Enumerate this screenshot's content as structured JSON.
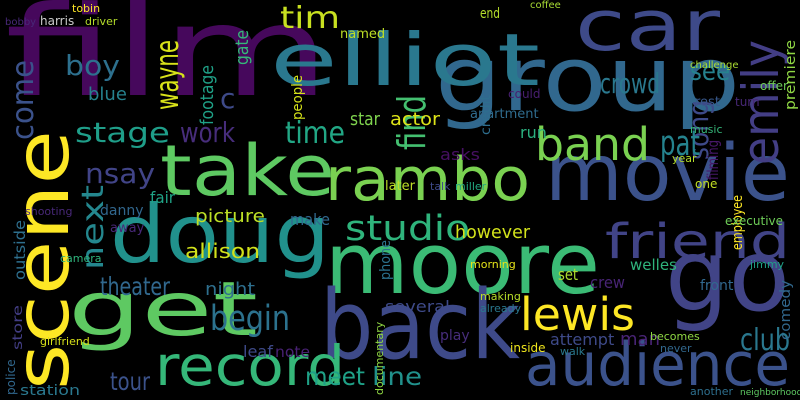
{
  "words": [
    {
      "text": "film",
      "color": "#46085c"
    },
    {
      "text": "group",
      "color": "#31688e"
    },
    {
      "text": "car",
      "color": "#3e4a89"
    },
    {
      "text": "elliot",
      "color": "#2a788e"
    },
    {
      "text": "movie",
      "color": "#3b528b"
    },
    {
      "text": "take",
      "color": "#5ec962"
    },
    {
      "text": "rambo",
      "color": "#7ad151"
    },
    {
      "text": "doug",
      "color": "#21918c"
    },
    {
      "text": "moore",
      "color": "#3bbb75"
    },
    {
      "text": "back",
      "color": "#3e4a89"
    },
    {
      "text": "get",
      "color": "#5ec962"
    },
    {
      "text": "scene",
      "color": "#fde725"
    },
    {
      "text": "go",
      "color": "#414487"
    },
    {
      "text": "audience",
      "color": "#3b528b"
    },
    {
      "text": "record",
      "color": "#35b779"
    },
    {
      "text": "friend",
      "color": "#414487"
    },
    {
      "text": "emily",
      "color": "#433e85"
    },
    {
      "text": "band",
      "color": "#7ad151"
    },
    {
      "text": "lewis",
      "color": "#fde725"
    },
    {
      "text": "studio",
      "color": "#2fb47c"
    },
    {
      "text": "stage",
      "color": "#1f9e89"
    },
    {
      "text": "work",
      "color": "#472d7b"
    },
    {
      "text": "time",
      "color": "#22a785"
    },
    {
      "text": "tim",
      "color": "#c8e020"
    },
    {
      "text": "boy",
      "color": "#2d708e"
    },
    {
      "text": "wayne",
      "color": "#d8e219"
    },
    {
      "text": "come",
      "color": "#3b528b"
    },
    {
      "text": "crowd",
      "color": "#2a788e"
    },
    {
      "text": "see",
      "color": "#26828e"
    },
    {
      "text": "song",
      "color": "#3e4a89"
    },
    {
      "text": "pat",
      "color": "#25838e"
    },
    {
      "text": "find",
      "color": "#44bf70"
    },
    {
      "text": "nsay",
      "color": "#414487"
    },
    {
      "text": "next",
      "color": "#24878e"
    },
    {
      "text": "begin",
      "color": "#2c728e"
    },
    {
      "text": "theater",
      "color": "#31688e"
    },
    {
      "text": "tour",
      "color": "#3b528b"
    },
    {
      "text": "meet",
      "color": "#1fa187"
    },
    {
      "text": "line",
      "color": "#21918c"
    },
    {
      "text": "club",
      "color": "#2a788e"
    },
    {
      "text": "allison",
      "color": "#d2e21b"
    },
    {
      "text": "picture",
      "color": "#bddf26"
    },
    {
      "text": "make",
      "color": "#31688e"
    },
    {
      "text": "night",
      "color": "#2e6f8e"
    },
    {
      "text": "note",
      "color": "#482173"
    },
    {
      "text": "leaf",
      "color": "#3e4a89"
    },
    {
      "text": "star",
      "color": "#7fd34e"
    },
    {
      "text": "actor",
      "color": "#dde318"
    },
    {
      "text": "end",
      "color": "#b5de2b"
    },
    {
      "text": "phone",
      "color": "#2c728e"
    },
    {
      "text": "asks",
      "color": "#471063"
    },
    {
      "text": "however",
      "color": "#d2e21b"
    },
    {
      "text": "several",
      "color": "#3e4a89"
    },
    {
      "text": "crew",
      "color": "#482475"
    },
    {
      "text": "set",
      "color": "#addc30"
    },
    {
      "text": "fair",
      "color": "#20a386"
    },
    {
      "text": "filming",
      "color": "#48186a"
    },
    {
      "text": "employee",
      "color": "#fde725"
    },
    {
      "text": "comedy",
      "color": "#31688e"
    },
    {
      "text": "premiere",
      "color": "#8fd744"
    },
    {
      "text": "station",
      "color": "#2a788e"
    },
    {
      "text": "harris",
      "color": "#cccccc"
    },
    {
      "text": "driver",
      "color": "#b5de2b"
    },
    {
      "text": "tobin",
      "color": "#fde725"
    },
    {
      "text": "bobby",
      "color": "#482878"
    },
    {
      "text": "gate",
      "color": "#35b779"
    },
    {
      "text": "footage",
      "color": "#1fa187"
    },
    {
      "text": "blue",
      "color": "#26828e"
    },
    {
      "text": "c",
      "color": "#3e4a89"
    },
    {
      "text": "named",
      "color": "#bddf26"
    },
    {
      "text": "coffee",
      "color": "#a8db34"
    },
    {
      "text": "rest",
      "color": "#38588c"
    },
    {
      "text": "challenge",
      "color": "#aadc32"
    },
    {
      "text": "credit",
      "color": "#2e6e8e"
    },
    {
      "text": "run",
      "color": "#2ab07f"
    },
    {
      "text": "could",
      "color": "#481f70"
    },
    {
      "text": "people",
      "color": "#d5e21a"
    },
    {
      "text": "later",
      "color": "#bddf26"
    },
    {
      "text": "talk",
      "color": "#3e4a89"
    },
    {
      "text": "miller",
      "color": "#23a983"
    },
    {
      "text": "apartment",
      "color": "#2f6c8e"
    },
    {
      "text": "danny",
      "color": "#31678e"
    },
    {
      "text": "away",
      "color": "#482878"
    },
    {
      "text": "outside",
      "color": "#2e6f8e"
    },
    {
      "text": "store",
      "color": "#433e85"
    },
    {
      "text": "police",
      "color": "#31688e"
    },
    {
      "text": "girlfriend",
      "color": "#d8e219"
    },
    {
      "text": "welles",
      "color": "#2fb47c"
    },
    {
      "text": "front",
      "color": "#31688e"
    },
    {
      "text": "jimmy",
      "color": "#1fa187"
    },
    {
      "text": "executive",
      "color": "#6ece58"
    },
    {
      "text": "attempt",
      "color": "#3e4a89"
    },
    {
      "text": "man",
      "color": "#482475"
    },
    {
      "text": "play",
      "color": "#472d7b"
    },
    {
      "text": "inside",
      "color": "#efe51c"
    },
    {
      "text": "walk",
      "color": "#2a788e"
    },
    {
      "text": "never",
      "color": "#31688e"
    },
    {
      "text": "becomes",
      "color": "#8fd744"
    },
    {
      "text": "another",
      "color": "#2e6f8e"
    },
    {
      "text": "neighborhood",
      "color": "#5ec962"
    },
    {
      "text": "documentary",
      "color": "#90d743"
    },
    {
      "text": "making",
      "color": "#b8de29"
    },
    {
      "text": "already",
      "color": "#2a788e"
    },
    {
      "text": "music",
      "color": "#35b779"
    },
    {
      "text": "year",
      "color": "#b5de2b"
    },
    {
      "text": "one",
      "color": "#c2df23"
    },
    {
      "text": "morning",
      "color": "#e5e419"
    },
    {
      "text": "shooting",
      "color": "#482878"
    },
    {
      "text": "camera",
      "color": "#2fb47c"
    },
    {
      "text": "turn",
      "color": "#482878"
    },
    {
      "text": "offer",
      "color": "#6ece58"
    }
  ]
}
